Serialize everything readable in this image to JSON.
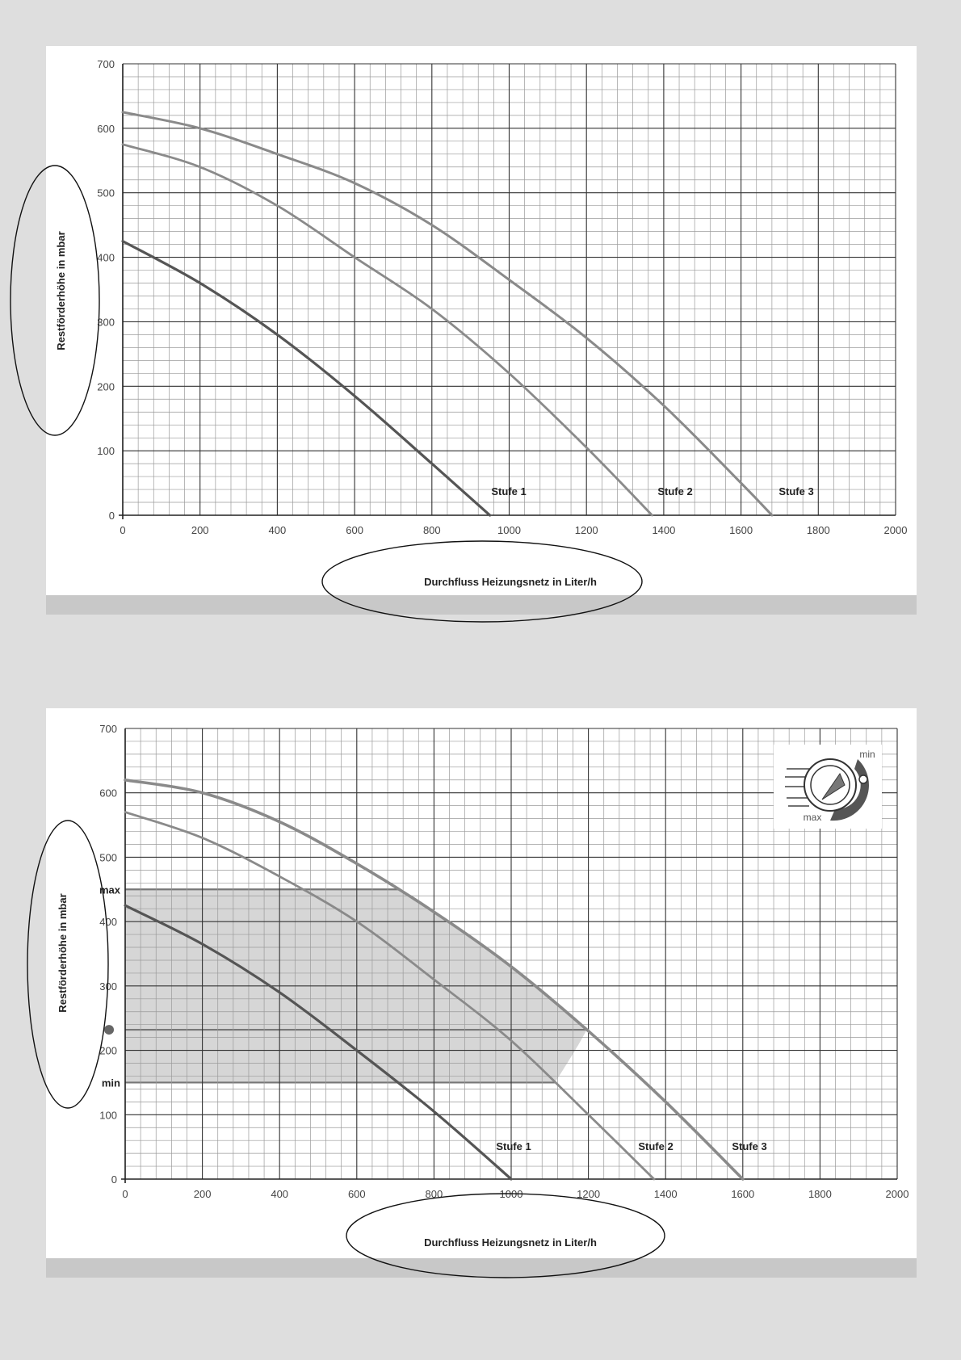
{
  "colors": {
    "page_bg": "#dedede",
    "panel_bg": "#ffffff",
    "grid_major": "#333333",
    "grid_minor": "#9a9a9a",
    "curve_dark": "#555555",
    "curve_mid": "#8a8a8a",
    "band_fill": "#c8c8c8"
  },
  "chart_data": [
    {
      "type": "line",
      "xlabel": "Durchfluss Heizungsnetz in Liter/h",
      "ylabel": "Restförderhöhe in mbar",
      "xlim": [
        0,
        2000
      ],
      "ylim": [
        0,
        700
      ],
      "x_ticks": [
        "0",
        "200",
        "400",
        "600",
        "800",
        "1000",
        "1200",
        "1400",
        "1600",
        "1800",
        "2000"
      ],
      "y_ticks": [
        "0",
        "100",
        "200",
        "300",
        "400",
        "500",
        "600",
        "700"
      ],
      "grid": true,
      "series": [
        {
          "name": "Stufe 1",
          "x": [
            0,
            200,
            400,
            600,
            800,
            950
          ],
          "y": [
            425,
            360,
            280,
            185,
            80,
            0
          ]
        },
        {
          "name": "Stufe 2",
          "x": [
            0,
            200,
            400,
            600,
            800,
            1000,
            1200,
            1370
          ],
          "y": [
            575,
            540,
            480,
            400,
            320,
            220,
            105,
            0
          ]
        },
        {
          "name": "Stufe 3",
          "x": [
            0,
            200,
            400,
            600,
            800,
            1000,
            1200,
            1400,
            1600,
            1680
          ],
          "y": [
            625,
            600,
            560,
            515,
            450,
            365,
            275,
            170,
            50,
            0
          ]
        }
      ]
    },
    {
      "type": "line",
      "xlabel": "Durchfluss Heizungsnetz in Liter/h",
      "ylabel": "Restförderhöhe in mbar",
      "xlim": [
        0,
        2000
      ],
      "ylim": [
        0,
        700
      ],
      "x_ticks": [
        "0",
        "200",
        "400",
        "600",
        "800",
        "1000",
        "1200",
        "1400",
        "1600",
        "1800",
        "2000"
      ],
      "y_ticks": [
        "0",
        "100",
        "200",
        "300",
        "400",
        "500",
        "600",
        "700"
      ],
      "y_marks": {
        "max_label": "max",
        "max_value": 450,
        "min_label": "min",
        "min_value": 150,
        "dot_value": 232
      },
      "grid": true,
      "series": [
        {
          "name": "Stufe 1",
          "x": [
            0,
            200,
            400,
            600,
            800,
            1000
          ],
          "y": [
            425,
            365,
            290,
            200,
            105,
            0
          ]
        },
        {
          "name": "Stufe 2",
          "x": [
            0,
            200,
            400,
            600,
            800,
            1000,
            1200,
            1370
          ],
          "y": [
            570,
            530,
            470,
            400,
            310,
            215,
            100,
            0
          ]
        },
        {
          "name": "Stufe 3",
          "x": [
            0,
            200,
            400,
            600,
            800,
            1000,
            1200,
            1400,
            1600
          ],
          "y": [
            620,
            600,
            555,
            490,
            415,
            330,
            230,
            120,
            0
          ]
        }
      ],
      "band": {
        "y_max": 450,
        "y_mid": 232,
        "y_min": 150
      },
      "legend_icon": {
        "min_label": "min",
        "max_label": "max"
      }
    }
  ]
}
